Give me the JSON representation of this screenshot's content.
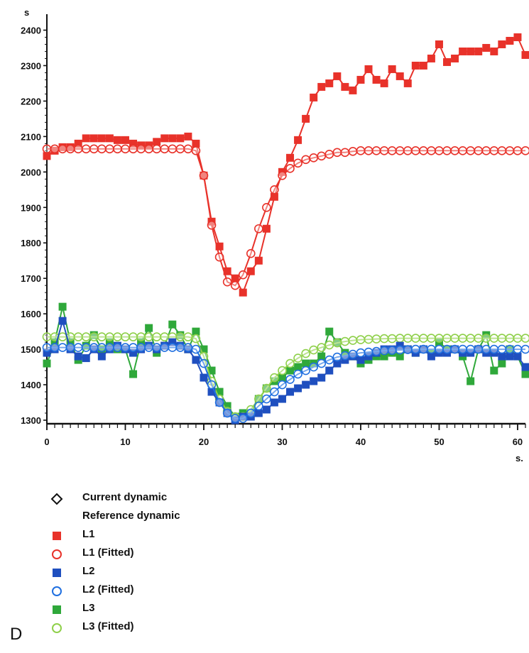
{
  "chart_data": {
    "type": "line",
    "title": "",
    "ylabel": "s",
    "xlabel": "s.",
    "xlim": [
      0,
      61
    ],
    "ylim": [
      1290,
      2425
    ],
    "x_ticks": [
      0,
      10,
      20,
      30,
      40,
      50,
      60
    ],
    "y_ticks": [
      1300,
      1400,
      1500,
      1600,
      1700,
      1800,
      1900,
      2000,
      2100,
      2200,
      2300,
      2400
    ],
    "grid": false,
    "legend_position": "bottom-left",
    "colors": {
      "L1": "#e8322a",
      "L2": "#1f4fbf",
      "L3": "#2fa83a",
      "L3_fit": "#8fd04a"
    },
    "series": [
      {
        "name": "L1",
        "marker": "filled-square",
        "color": "#e8322a",
        "x": [
          0,
          1,
          2,
          3,
          4,
          5,
          6,
          7,
          8,
          9,
          10,
          11,
          12,
          13,
          14,
          15,
          16,
          17,
          18,
          19,
          20,
          21,
          22,
          23,
          24,
          25,
          26,
          27,
          28,
          29,
          30,
          31,
          32,
          33,
          34,
          35,
          36,
          37,
          38,
          39,
          40,
          41,
          42,
          43,
          44,
          45,
          46,
          47,
          48,
          49,
          50,
          51,
          52,
          53,
          54,
          55,
          56,
          57,
          58,
          59,
          60,
          61
        ],
        "y": [
          2045,
          2060,
          2070,
          2070,
          2080,
          2095,
          2095,
          2095,
          2095,
          2090,
          2090,
          2080,
          2075,
          2075,
          2085,
          2095,
          2095,
          2095,
          2100,
          2080,
          1990,
          1860,
          1790,
          1720,
          1700,
          1660,
          1720,
          1750,
          1840,
          1930,
          2000,
          2040,
          2090,
          2150,
          2210,
          2240,
          2250,
          2270,
          2240,
          2230,
          2260,
          2290,
          2260,
          2250,
          2290,
          2270,
          2250,
          2300,
          2300,
          2320,
          2360,
          2310,
          2320,
          2340,
          2340,
          2340,
          2350,
          2340,
          2360,
          2370,
          2380,
          2330
        ]
      },
      {
        "name": "L1 (Fitted)",
        "marker": "open-circle",
        "color": "#e8322a",
        "x": [
          0,
          1,
          2,
          3,
          4,
          5,
          6,
          7,
          8,
          9,
          10,
          11,
          12,
          13,
          14,
          15,
          16,
          17,
          18,
          19,
          20,
          21,
          22,
          23,
          24,
          25,
          26,
          27,
          28,
          29,
          30,
          31,
          32,
          33,
          34,
          35,
          36,
          37,
          38,
          39,
          40,
          41,
          42,
          43,
          44,
          45,
          46,
          47,
          48,
          49,
          50,
          51,
          52,
          53,
          54,
          55,
          56,
          57,
          58,
          59,
          60,
          61
        ],
        "y": [
          2065,
          2065,
          2065,
          2065,
          2065,
          2065,
          2065,
          2065,
          2065,
          2065,
          2065,
          2065,
          2065,
          2065,
          2065,
          2065,
          2065,
          2065,
          2065,
          2060,
          1990,
          1850,
          1760,
          1690,
          1680,
          1710,
          1770,
          1840,
          1900,
          1950,
          1990,
          2010,
          2025,
          2035,
          2040,
          2045,
          2050,
          2055,
          2055,
          2058,
          2060,
          2060,
          2060,
          2060,
          2060,
          2060,
          2060,
          2060,
          2060,
          2060,
          2060,
          2060,
          2060,
          2060,
          2060,
          2060,
          2060,
          2060,
          2060,
          2060,
          2060,
          2060
        ]
      },
      {
        "name": "L2",
        "marker": "filled-square",
        "color": "#1f4fbf",
        "x": [
          0,
          1,
          2,
          3,
          4,
          5,
          6,
          7,
          8,
          9,
          10,
          11,
          12,
          13,
          14,
          15,
          16,
          17,
          18,
          19,
          20,
          21,
          22,
          23,
          24,
          25,
          26,
          27,
          28,
          29,
          30,
          31,
          32,
          33,
          34,
          35,
          36,
          37,
          38,
          39,
          40,
          41,
          42,
          43,
          44,
          45,
          46,
          47,
          48,
          49,
          50,
          51,
          52,
          53,
          54,
          55,
          56,
          57,
          58,
          59,
          60,
          61
        ],
        "y": [
          1490,
          1500,
          1580,
          1500,
          1480,
          1475,
          1500,
          1480,
          1500,
          1510,
          1500,
          1490,
          1500,
          1510,
          1500,
          1510,
          1520,
          1510,
          1500,
          1470,
          1420,
          1380,
          1350,
          1320,
          1300,
          1310,
          1310,
          1320,
          1330,
          1350,
          1360,
          1380,
          1390,
          1400,
          1410,
          1420,
          1440,
          1460,
          1470,
          1480,
          1470,
          1480,
          1490,
          1500,
          1500,
          1510,
          1500,
          1490,
          1500,
          1480,
          1490,
          1490,
          1500,
          1490,
          1490,
          1500,
          1490,
          1490,
          1480,
          1480,
          1480,
          1450
        ]
      },
      {
        "name": "L2 (Fitted)",
        "marker": "open-circle",
        "color": "#1f6fe0",
        "x": [
          0,
          1,
          2,
          3,
          4,
          5,
          6,
          7,
          8,
          9,
          10,
          11,
          12,
          13,
          14,
          15,
          16,
          17,
          18,
          19,
          20,
          21,
          22,
          23,
          24,
          25,
          26,
          27,
          28,
          29,
          30,
          31,
          32,
          33,
          34,
          35,
          36,
          37,
          38,
          39,
          40,
          41,
          42,
          43,
          44,
          45,
          46,
          47,
          48,
          49,
          50,
          51,
          52,
          53,
          54,
          55,
          56,
          57,
          58,
          59,
          60,
          61
        ],
        "y": [
          1505,
          1505,
          1505,
          1505,
          1505,
          1505,
          1505,
          1505,
          1505,
          1505,
          1505,
          1505,
          1505,
          1505,
          1505,
          1505,
          1505,
          1505,
          1505,
          1500,
          1460,
          1400,
          1350,
          1320,
          1305,
          1305,
          1320,
          1340,
          1360,
          1380,
          1400,
          1415,
          1430,
          1440,
          1450,
          1460,
          1470,
          1478,
          1482,
          1486,
          1490,
          1492,
          1494,
          1496,
          1497,
          1498,
          1499,
          1500,
          1500,
          1500,
          1500,
          1500,
          1500,
          1500,
          1500,
          1500,
          1500,
          1500,
          1500,
          1500,
          1500,
          1500
        ]
      },
      {
        "name": "L3",
        "marker": "filled-square",
        "color": "#2fa83a",
        "x": [
          0,
          1,
          2,
          3,
          4,
          5,
          6,
          7,
          8,
          9,
          10,
          11,
          12,
          13,
          14,
          15,
          16,
          17,
          18,
          19,
          20,
          21,
          22,
          23,
          24,
          25,
          26,
          27,
          28,
          29,
          30,
          31,
          32,
          33,
          34,
          35,
          36,
          37,
          38,
          39,
          40,
          41,
          42,
          43,
          44,
          45,
          46,
          47,
          48,
          49,
          50,
          51,
          52,
          53,
          54,
          55,
          56,
          57,
          58,
          59,
          60,
          61
        ],
        "y": [
          1460,
          1520,
          1620,
          1520,
          1470,
          1510,
          1540,
          1500,
          1520,
          1500,
          1500,
          1430,
          1520,
          1560,
          1490,
          1510,
          1570,
          1540,
          1500,
          1550,
          1500,
          1440,
          1380,
          1340,
          1310,
          1320,
          1320,
          1360,
          1390,
          1410,
          1420,
          1440,
          1450,
          1460,
          1460,
          1480,
          1550,
          1520,
          1490,
          1480,
          1460,
          1470,
          1480,
          1480,
          1490,
          1480,
          1500,
          1490,
          1500,
          1490,
          1520,
          1500,
          1500,
          1480,
          1410,
          1500,
          1540,
          1440,
          1460,
          1500,
          1480,
          1430
        ]
      },
      {
        "name": "L3 (Fitted)",
        "marker": "open-circle",
        "color": "#8fd04a",
        "x": [
          0,
          1,
          2,
          3,
          4,
          5,
          6,
          7,
          8,
          9,
          10,
          11,
          12,
          13,
          14,
          15,
          16,
          17,
          18,
          19,
          20,
          21,
          22,
          23,
          24,
          25,
          26,
          27,
          28,
          29,
          30,
          31,
          32,
          33,
          34,
          35,
          36,
          37,
          38,
          39,
          40,
          41,
          42,
          43,
          44,
          45,
          46,
          47,
          48,
          49,
          50,
          51,
          52,
          53,
          54,
          55,
          56,
          57,
          58,
          59,
          60,
          61
        ],
        "y": [
          1535,
          1535,
          1535,
          1535,
          1535,
          1535,
          1535,
          1535,
          1535,
          1535,
          1535,
          1535,
          1535,
          1535,
          1535,
          1535,
          1535,
          1535,
          1535,
          1530,
          1480,
          1410,
          1360,
          1325,
          1310,
          1310,
          1330,
          1360,
          1390,
          1420,
          1440,
          1460,
          1475,
          1488,
          1498,
          1505,
          1512,
          1518,
          1522,
          1525,
          1527,
          1528,
          1529,
          1530,
          1530,
          1531,
          1531,
          1531,
          1531,
          1531,
          1531,
          1531,
          1531,
          1531,
          1531,
          1531,
          1531,
          1531,
          1531,
          1531,
          1531,
          1531
        ]
      }
    ]
  },
  "legend": {
    "items": [
      {
        "symbol": "open-diamond",
        "color": "#111111",
        "label": "Current dynamic"
      },
      {
        "symbol": "none",
        "color": "#111111",
        "label": "Reference dynamic"
      },
      {
        "symbol": "filled-square",
        "color": "#e8322a",
        "label": "L1"
      },
      {
        "symbol": "open-circle",
        "color": "#e8322a",
        "label": "L1 (Fitted)"
      },
      {
        "symbol": "filled-square",
        "color": "#1f4fbf",
        "label": "L2"
      },
      {
        "symbol": "open-circle",
        "color": "#1f6fe0",
        "label": "L2 (Fitted)"
      },
      {
        "symbol": "filled-square",
        "color": "#2fa83a",
        "label": "L3"
      },
      {
        "symbol": "open-circle",
        "color": "#8fd04a",
        "label": "L3 (Fitted)"
      }
    ]
  },
  "panel_letter": "D"
}
